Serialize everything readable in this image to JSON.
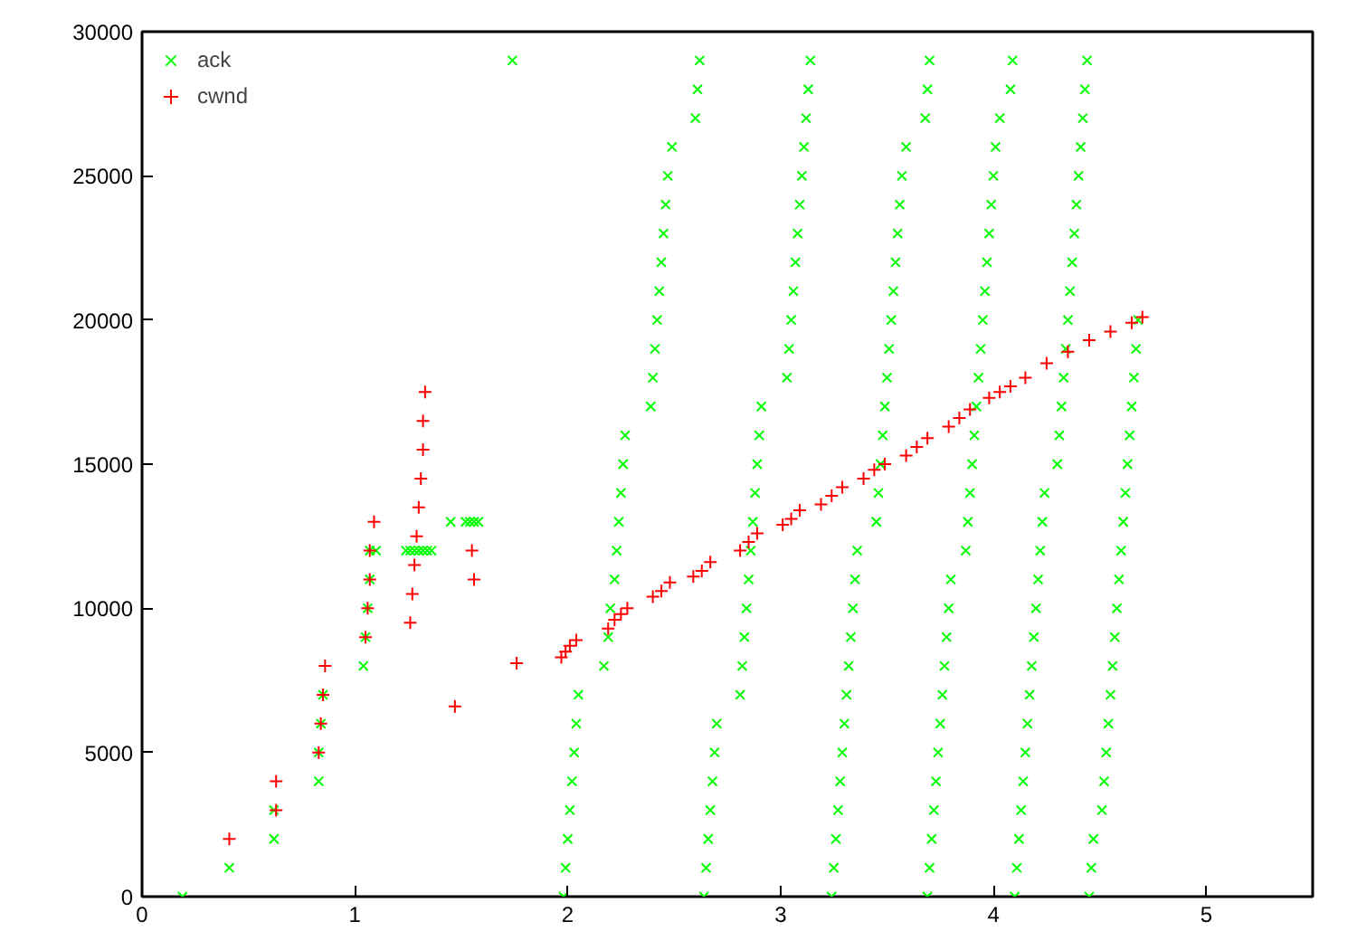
{
  "chart_data": {
    "type": "scatter",
    "xlim": [
      0,
      5.5
    ],
    "xticks": [
      0,
      1,
      2,
      3,
      4,
      5
    ],
    "ylim": [
      0,
      30000
    ],
    "yticks": [
      0,
      5000,
      10000,
      15000,
      20000,
      25000,
      30000
    ],
    "grid": false,
    "legend": "top left",
    "series": [
      {
        "name": "ack",
        "color": "#00ff00",
        "marker": "x",
        "x": [
          0.19,
          0.41,
          0.62,
          0.62,
          0.83,
          0.83,
          0.84,
          0.85,
          1.04,
          1.05,
          1.06,
          1.07,
          1.07,
          1.1,
          1.24,
          1.26,
          1.28,
          1.3,
          1.32,
          1.34,
          1.36,
          1.45,
          1.52,
          1.54,
          1.56,
          1.58,
          1.74,
          1.98,
          1.99,
          2.0,
          2.01,
          2.02,
          2.03,
          2.04,
          2.05,
          2.17,
          2.19,
          2.2,
          2.22,
          2.23,
          2.24,
          2.25,
          2.26,
          2.27,
          2.39,
          2.4,
          2.41,
          2.42,
          2.43,
          2.44,
          2.45,
          2.46,
          2.47,
          2.49,
          2.6,
          2.61,
          2.62,
          2.64,
          2.65,
          2.66,
          2.67,
          2.68,
          2.69,
          2.7,
          2.81,
          2.82,
          2.83,
          2.84,
          2.85,
          2.86,
          2.87,
          2.88,
          2.89,
          2.9,
          2.91,
          3.03,
          3.04,
          3.05,
          3.06,
          3.07,
          3.08,
          3.09,
          3.1,
          3.11,
          3.12,
          3.13,
          3.14,
          3.24,
          3.25,
          3.26,
          3.27,
          3.28,
          3.29,
          3.3,
          3.31,
          3.32,
          3.33,
          3.34,
          3.35,
          3.36,
          3.45,
          3.46,
          3.47,
          3.48,
          3.49,
          3.5,
          3.51,
          3.52,
          3.53,
          3.54,
          3.55,
          3.56,
          3.57,
          3.59,
          3.68,
          3.69,
          3.7,
          3.69,
          3.7,
          3.71,
          3.72,
          3.73,
          3.74,
          3.75,
          3.76,
          3.77,
          3.78,
          3.79,
          3.8,
          3.87,
          3.88,
          3.89,
          3.9,
          3.91,
          3.92,
          3.93,
          3.94,
          3.95,
          3.96,
          3.97,
          3.98,
          3.99,
          4.0,
          4.01,
          4.03,
          4.08,
          4.09,
          4.1,
          4.11,
          4.12,
          4.13,
          4.14,
          4.15,
          4.16,
          4.17,
          4.18,
          4.19,
          4.2,
          4.21,
          4.22,
          4.23,
          4.24,
          4.3,
          4.31,
          4.32,
          4.33,
          4.34,
          4.35,
          4.36,
          4.37,
          4.38,
          4.39,
          4.4,
          4.41,
          4.42,
          4.43,
          4.44,
          4.45,
          4.46,
          4.47,
          4.51,
          4.52,
          4.53,
          4.54,
          4.55,
          4.56,
          4.57,
          4.58,
          4.59,
          4.6,
          4.61,
          4.62,
          4.63,
          4.64,
          4.65,
          4.66,
          4.67,
          4.68
        ],
        "values": [
          0,
          1000,
          2000,
          3000,
          4000,
          5000,
          6000,
          7000,
          8000,
          9000,
          10000,
          11000,
          12000,
          12000,
          12000,
          12000,
          12000,
          12000,
          12000,
          12000,
          12000,
          13000,
          13000,
          13000,
          13000,
          13000,
          29000,
          0,
          1000,
          2000,
          3000,
          4000,
          5000,
          6000,
          7000,
          8000,
          9000,
          10000,
          11000,
          12000,
          13000,
          14000,
          15000,
          16000,
          17000,
          18000,
          19000,
          20000,
          21000,
          22000,
          23000,
          24000,
          25000,
          26000,
          27000,
          28000,
          29000,
          0,
          1000,
          2000,
          3000,
          4000,
          5000,
          6000,
          7000,
          8000,
          9000,
          10000,
          11000,
          12000,
          13000,
          14000,
          15000,
          16000,
          17000,
          18000,
          19000,
          20000,
          21000,
          22000,
          23000,
          24000,
          25000,
          26000,
          27000,
          28000,
          29000,
          0,
          1000,
          2000,
          3000,
          4000,
          5000,
          6000,
          7000,
          8000,
          9000,
          10000,
          11000,
          12000,
          13000,
          14000,
          15000,
          16000,
          17000,
          18000,
          19000,
          20000,
          21000,
          22000,
          23000,
          24000,
          25000,
          26000,
          27000,
          28000,
          29000,
          0,
          1000,
          2000,
          3000,
          4000,
          5000,
          6000,
          7000,
          8000,
          9000,
          10000,
          11000,
          12000,
          13000,
          14000,
          15000,
          16000,
          17000,
          18000,
          19000,
          20000,
          21000,
          22000,
          23000,
          24000,
          25000,
          26000,
          27000,
          28000,
          29000,
          0,
          1000,
          2000,
          3000,
          4000,
          5000,
          6000,
          7000,
          8000,
          9000,
          10000,
          11000,
          12000,
          13000,
          14000,
          15000,
          16000,
          17000,
          18000,
          19000,
          20000,
          21000,
          22000,
          23000,
          24000,
          25000,
          26000,
          27000,
          28000,
          29000,
          0,
          1000,
          2000,
          3000,
          4000,
          5000,
          6000,
          7000,
          8000,
          9000,
          10000,
          11000,
          12000,
          13000,
          14000,
          15000,
          16000,
          17000,
          18000,
          19000,
          20000
        ]
      },
      {
        "name": "cwnd",
        "color": "#ff0000",
        "marker": "cross",
        "x": [
          0.41,
          0.63,
          0.63,
          0.83,
          0.84,
          0.85,
          0.86,
          1.05,
          1.06,
          1.07,
          1.07,
          1.09,
          1.26,
          1.27,
          1.28,
          1.29,
          1.3,
          1.31,
          1.32,
          1.32,
          1.33,
          1.47,
          1.55,
          1.56,
          1.76,
          1.97,
          1.99,
          2.01,
          2.04,
          2.19,
          2.22,
          2.25,
          2.28,
          2.4,
          2.44,
          2.48,
          2.59,
          2.63,
          2.67,
          2.81,
          2.85,
          2.89,
          3.01,
          3.05,
          3.09,
          3.19,
          3.24,
          3.29,
          3.39,
          3.44,
          3.49,
          3.59,
          3.64,
          3.69,
          3.79,
          3.84,
          3.89,
          3.98,
          4.03,
          4.08,
          4.15,
          4.25,
          4.35,
          4.45,
          4.55,
          4.65,
          4.7
        ],
        "values": [
          2000,
          3000,
          4000,
          5000,
          6000,
          7000,
          8000,
          9000,
          10000,
          11000,
          12000,
          13000,
          9500,
          10500,
          11500,
          12500,
          13500,
          14500,
          15500,
          16500,
          17500,
          6600,
          12000,
          11000,
          8100,
          8300,
          8500,
          8700,
          8900,
          9300,
          9600,
          9800,
          10000,
          10400,
          10600,
          10900,
          11100,
          11300,
          11600,
          12000,
          12300,
          12600,
          12900,
          13100,
          13400,
          13600,
          13900,
          14200,
          14500,
          14800,
          15000,
          15300,
          15600,
          15900,
          16300,
          16600,
          16900,
          17300,
          17500,
          17700,
          18000,
          18500,
          18900,
          19300,
          19600,
          19900,
          20100
        ]
      }
    ]
  }
}
